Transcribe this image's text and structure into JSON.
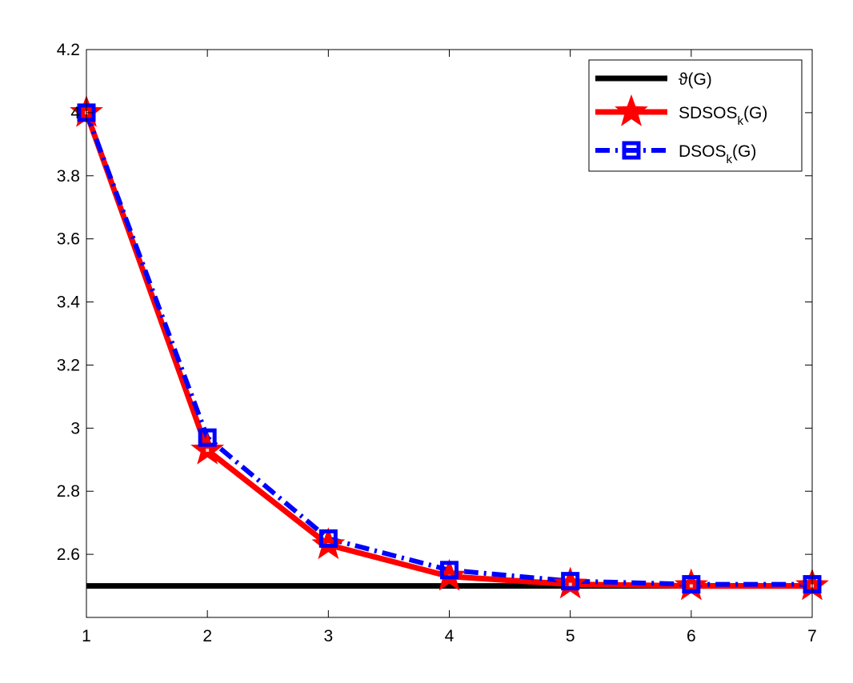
{
  "chart_data": {
    "type": "line",
    "x": [
      1,
      2,
      3,
      4,
      5,
      6,
      7
    ],
    "xlim": [
      1,
      7
    ],
    "ylim": [
      2.4,
      4.2
    ],
    "xticks": [
      "1",
      "2",
      "3",
      "4",
      "5",
      "6",
      "7"
    ],
    "yticks": [
      "2.6",
      "2.8",
      "3",
      "3.2",
      "3.4",
      "3.6",
      "3.8",
      "4",
      "4.2"
    ],
    "ytick_values": [
      2.6,
      2.8,
      3.0,
      3.2,
      3.4,
      3.6,
      3.8,
      4.0,
      4.2
    ],
    "grid": false,
    "legend_position": "top-right",
    "series": [
      {
        "name": "ϑ(G)",
        "name_main": "ϑ(G)",
        "name_sub": "",
        "name_tail": "",
        "values": [
          2.5,
          2.5,
          2.5,
          2.5,
          2.5,
          2.5,
          2.5
        ],
        "color": "#000000",
        "marker": "none",
        "linestyle": "solid"
      },
      {
        "name": "SDSOS_k(G)",
        "name_main": "SDSOS",
        "name_sub": "k",
        "name_tail": "(G)",
        "values": [
          4.0,
          2.93,
          2.63,
          2.53,
          2.505,
          2.5,
          2.5
        ],
        "color": "#ff0000",
        "marker": "star",
        "linestyle": "solid"
      },
      {
        "name": "DSOS_k(G)",
        "name_main": "DSOS",
        "name_sub": "k",
        "name_tail": "(G)",
        "values": [
          4.0,
          2.97,
          2.65,
          2.55,
          2.515,
          2.505,
          2.505
        ],
        "color": "#0000ff",
        "marker": "square",
        "linestyle": "dashdot"
      }
    ]
  }
}
